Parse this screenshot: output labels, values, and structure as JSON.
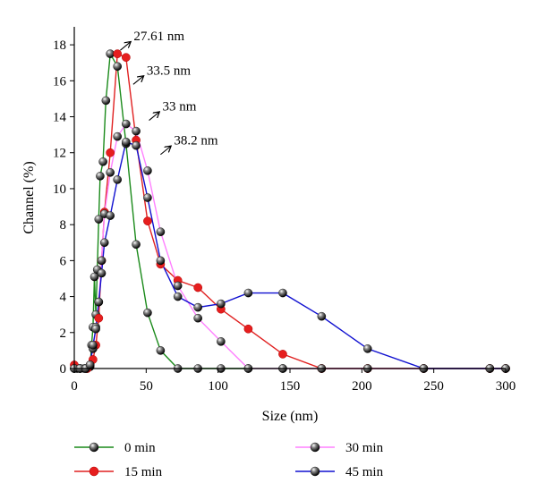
{
  "chart_data": {
    "type": "line",
    "xlabel": "Size (nm)",
    "ylabel": "Channel (%)",
    "xlim": [
      0,
      300
    ],
    "ylim": [
      0,
      19
    ],
    "xticks": [
      0,
      50,
      100,
      150,
      200,
      250,
      300
    ],
    "yticks": [
      0,
      2,
      4,
      6,
      8,
      10,
      12,
      14,
      16,
      18
    ],
    "grid": false,
    "legend_position": "bottom",
    "series": [
      {
        "name": "0 min",
        "color": "#1a8a1a",
        "marker": "black-sphere",
        "x": [
          0,
          2,
          4,
          7,
          9,
          11,
          12,
          13,
          14,
          15,
          16,
          17,
          18,
          20,
          22,
          25,
          30,
          36,
          43,
          51,
          60,
          72,
          86,
          102,
          121,
          145,
          172,
          204,
          243,
          289,
          300
        ],
        "y": [
          0,
          0,
          0,
          0,
          0,
          0.1,
          1.3,
          2.3,
          5.1,
          3.0,
          5.5,
          8.3,
          10.7,
          11.5,
          14.9,
          17.5,
          16.8,
          12.5,
          6.9,
          3.1,
          1.0,
          0,
          0,
          0,
          0,
          0,
          0,
          0,
          0,
          0,
          0
        ]
      },
      {
        "name": "15 min",
        "color": "#e02020",
        "marker": "red-dot",
        "x": [
          0,
          9,
          11,
          13,
          15,
          17,
          19,
          21,
          25,
          30,
          36,
          43,
          51,
          60,
          72,
          86,
          102,
          121,
          145,
          172,
          204,
          243,
          289,
          300
        ],
        "y": [
          0.2,
          0,
          0.2,
          0.5,
          1.3,
          2.8,
          6.0,
          8.7,
          12.0,
          17.5,
          17.3,
          12.7,
          8.2,
          5.8,
          4.9,
          4.5,
          3.3,
          2.2,
          0.8,
          0,
          0,
          0,
          0,
          0
        ]
      },
      {
        "name": "30 min",
        "color": "#ff80ff",
        "marker": "black-sphere",
        "x": [
          0,
          4,
          8,
          11,
          13,
          15,
          17,
          19,
          21,
          25,
          30,
          36,
          43,
          51,
          60,
          72,
          86,
          102,
          121,
          145,
          172,
          204,
          243,
          289,
          300
        ],
        "y": [
          0,
          0,
          0,
          0.2,
          1.1,
          2.3,
          3.7,
          6.0,
          8.6,
          10.9,
          12.9,
          13.6,
          13.2,
          11.0,
          7.6,
          4.6,
          2.8,
          1.5,
          0,
          0,
          0,
          0,
          0,
          0,
          0
        ]
      },
      {
        "name": "45 min",
        "color": "#1010d0",
        "marker": "black-sphere",
        "x": [
          0,
          4,
          8,
          11,
          13,
          15,
          17,
          19,
          21,
          25,
          30,
          36,
          43,
          51,
          60,
          72,
          86,
          102,
          121,
          145,
          172,
          204,
          243,
          289,
          300
        ],
        "y": [
          0,
          0,
          0,
          0.2,
          1.3,
          2.2,
          3.7,
          5.3,
          7.0,
          8.5,
          10.5,
          12.6,
          12.4,
          9.5,
          6.0,
          4.0,
          3.4,
          3.6,
          4.2,
          4.2,
          2.9,
          1.1,
          0,
          0,
          0
        ]
      }
    ],
    "annotations": [
      {
        "text": "27.61 nm",
        "x": 32,
        "y": 17.7
      },
      {
        "text": "33.5 nm",
        "x": 41,
        "y": 15.8
      },
      {
        "text": "33 nm",
        "x": 52,
        "y": 13.8
      },
      {
        "text": "38.2 nm",
        "x": 60,
        "y": 11.9
      }
    ]
  }
}
